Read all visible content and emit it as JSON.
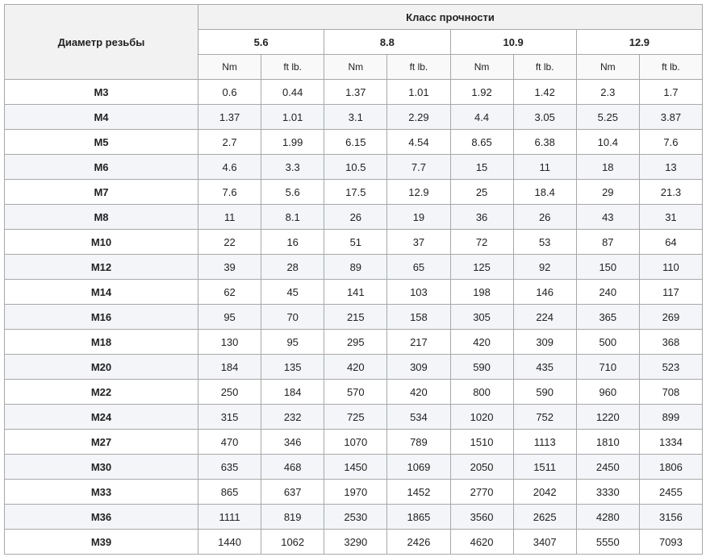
{
  "table": {
    "corner": "Диаметр резьбы",
    "group_title": "Класс прочности",
    "classes": [
      "5.6",
      "8.8",
      "10.9",
      "12.9"
    ],
    "units": [
      "Nm",
      "ft lb.",
      "Nm",
      "ft lb.",
      "Nm",
      "ft lb.",
      "Nm",
      "ft lb."
    ],
    "rows": [
      {
        "label": "M3",
        "values": [
          "0.6",
          "0.44",
          "1.37",
          "1.01",
          "1.92",
          "1.42",
          "2.3",
          "1.7"
        ]
      },
      {
        "label": "M4",
        "values": [
          "1.37",
          "1.01",
          "3.1",
          "2.29",
          "4.4",
          "3.05",
          "5.25",
          "3.87"
        ]
      },
      {
        "label": "M5",
        "values": [
          "2.7",
          "1.99",
          "6.15",
          "4.54",
          "8.65",
          "6.38",
          "10.4",
          "7.6"
        ]
      },
      {
        "label": "M6",
        "values": [
          "4.6",
          "3.3",
          "10.5",
          "7.7",
          "15",
          "11",
          "18",
          "13"
        ]
      },
      {
        "label": "M7",
        "values": [
          "7.6",
          "5.6",
          "17.5",
          "12.9",
          "25",
          "18.4",
          "29",
          "21.3"
        ]
      },
      {
        "label": "M8",
        "values": [
          "11",
          "8.1",
          "26",
          "19",
          "36",
          "26",
          "43",
          "31"
        ]
      },
      {
        "label": "M10",
        "values": [
          "22",
          "16",
          "51",
          "37",
          "72",
          "53",
          "87",
          "64"
        ]
      },
      {
        "label": "M12",
        "values": [
          "39",
          "28",
          "89",
          "65",
          "125",
          "92",
          "150",
          "110"
        ]
      },
      {
        "label": "M14",
        "values": [
          "62",
          "45",
          "141",
          "103",
          "198",
          "146",
          "240",
          "117"
        ]
      },
      {
        "label": "M16",
        "values": [
          "95",
          "70",
          "215",
          "158",
          "305",
          "224",
          "365",
          "269"
        ]
      },
      {
        "label": "M18",
        "values": [
          "130",
          "95",
          "295",
          "217",
          "420",
          "309",
          "500",
          "368"
        ]
      },
      {
        "label": "M20",
        "values": [
          "184",
          "135",
          "420",
          "309",
          "590",
          "435",
          "710",
          "523"
        ]
      },
      {
        "label": "M22",
        "values": [
          "250",
          "184",
          "570",
          "420",
          "800",
          "590",
          "960",
          "708"
        ]
      },
      {
        "label": "M24",
        "values": [
          "315",
          "232",
          "725",
          "534",
          "1020",
          "752",
          "1220",
          "899"
        ]
      },
      {
        "label": "M27",
        "values": [
          "470",
          "346",
          "1070",
          "789",
          "1510",
          "1113",
          "1810",
          "1334"
        ]
      },
      {
        "label": "M30",
        "values": [
          "635",
          "468",
          "1450",
          "1069",
          "2050",
          "1511",
          "2450",
          "1806"
        ]
      },
      {
        "label": "M33",
        "values": [
          "865",
          "637",
          "1970",
          "1452",
          "2770",
          "2042",
          "3330",
          "2455"
        ]
      },
      {
        "label": "M36",
        "values": [
          "1111",
          "819",
          "2530",
          "1865",
          "3560",
          "2625",
          "4280",
          "3156"
        ]
      },
      {
        "label": "M39",
        "values": [
          "1440",
          "1062",
          "3290",
          "2426",
          "4620",
          "3407",
          "5550",
          "7093"
        ]
      }
    ]
  }
}
